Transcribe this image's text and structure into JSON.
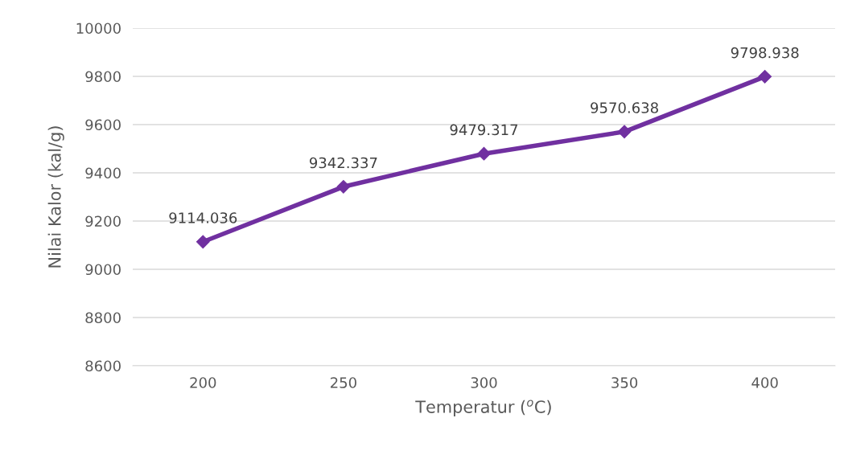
{
  "chart_data": {
    "type": "line",
    "xlabel": "Temperatur ($^{o}$C)",
    "ylabel": "Nilai Kalor (kal/g)",
    "categories": [
      "200",
      "250",
      "300",
      "350",
      "400"
    ],
    "series": [
      {
        "color": "#7030a0",
        "values": [
          9114.036,
          9342.337,
          9479.317,
          9570.638,
          9798.938
        ]
      }
    ],
    "ylim": [
      8600,
      10000
    ],
    "yticks": [
      8600,
      8800,
      9000,
      9200,
      9400,
      9600,
      9800,
      10000
    ],
    "grid": "y",
    "marker": "diamond",
    "line_style": "solid",
    "data_labels": true,
    "legend": false
  }
}
